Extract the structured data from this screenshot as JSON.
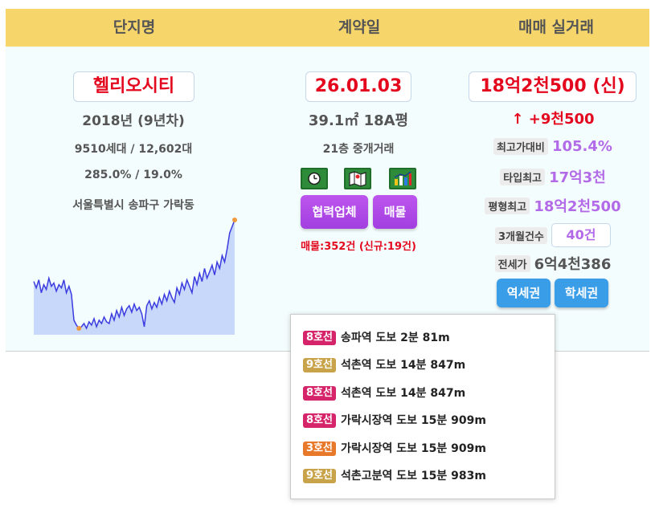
{
  "header": {
    "col1": "단지명",
    "col2": "계약일",
    "col3": "매매 실거래"
  },
  "complex": {
    "name": "헬리오시티",
    "built": "2018년 (9년차)",
    "households": "9510세대 / 12,602대",
    "ratio": "285.0% / 19.0%",
    "address": "서울특별시 송파구 가락동"
  },
  "contract": {
    "date": "26.01.03",
    "area": "39.1㎡ 18A평",
    "floor": "21층 중개거래",
    "icons": [
      "clock-icon",
      "map-icon",
      "chart-icon"
    ],
    "partner_label": "협력업체",
    "listing_label": "매물",
    "listing_count": "매물:352건 (신규:19건)"
  },
  "trade": {
    "price": "18억2천500 (신)",
    "change": "↑ +9천500",
    "stats": [
      {
        "label": "최고가대비",
        "value": "105.4%"
      },
      {
        "label": "타입최고",
        "value": "17억3천"
      },
      {
        "label": "평형최고",
        "value": "18억2천500"
      }
    ],
    "count_label": "3개월건수",
    "count_value": "40건",
    "jeonse_label": "전세가",
    "jeonse_value": "6억4천386",
    "station_btn": "역세권",
    "school_btn": "학세권"
  },
  "stations": [
    {
      "line": "8호선",
      "color": "#d6246b",
      "text": "송파역  도보 2분  81m"
    },
    {
      "line": "9호선",
      "color": "#c9a34a",
      "text": "석촌역  도보 14분  847m"
    },
    {
      "line": "8호선",
      "color": "#d6246b",
      "text": "석촌역  도보 14분  847m"
    },
    {
      "line": "8호선",
      "color": "#d6246b",
      "text": "가락시장역  도보 15분  909m"
    },
    {
      "line": "3호선",
      "color": "#e8782a",
      "text": "가락시장역  도보 15분  909m"
    },
    {
      "line": "9호선",
      "color": "#c9a34a",
      "text": "석촌고분역  도보 15분  983m"
    }
  ],
  "chart_data": {
    "type": "area",
    "line_color": "#3b3be0",
    "fill_color": "#c7d8fb",
    "values": [
      62,
      58,
      63,
      55,
      60,
      57,
      64,
      59,
      61,
      56,
      60,
      58,
      63,
      55,
      59,
      54,
      38,
      35,
      33,
      34,
      36,
      33,
      37,
      35,
      39,
      34,
      38,
      36,
      40,
      37,
      36,
      42,
      38,
      44,
      40,
      46,
      41,
      45,
      47,
      43,
      48,
      44,
      46,
      42,
      34,
      47,
      50,
      45,
      49,
      46,
      52,
      48,
      54,
      50,
      56,
      52,
      49,
      58,
      54,
      61,
      57,
      63,
      59,
      55,
      65,
      60,
      67,
      62,
      70,
      64,
      68,
      72,
      66,
      74,
      70,
      78,
      74,
      82,
      92,
      96,
      100
    ],
    "xlabel": "",
    "ylabel": ""
  }
}
